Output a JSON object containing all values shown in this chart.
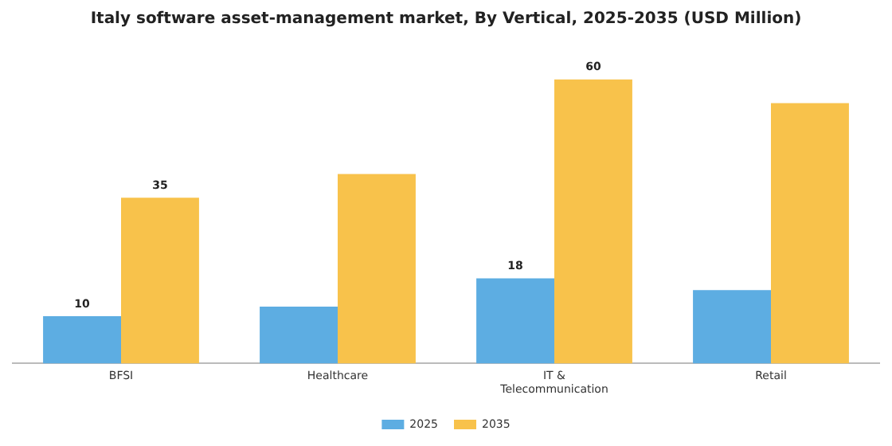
{
  "chart_data": {
    "type": "bar",
    "title": "Italy software asset-management market, By Vertical, 2025-2035 (USD Million)",
    "categories": [
      "BFSI",
      "Healthcare",
      "IT & Telecommunication",
      "Retail"
    ],
    "series": [
      {
        "name": "2025",
        "color": "#5dade2",
        "values": [
          10,
          12,
          18,
          15.5
        ],
        "value_labels": [
          "10",
          null,
          "18",
          null
        ]
      },
      {
        "name": "2035",
        "color": "#f8c24b",
        "values": [
          35,
          40,
          60,
          55
        ],
        "value_labels": [
          "35",
          null,
          "60",
          null
        ]
      }
    ],
    "legend": "bottom",
    "grid": false
  }
}
